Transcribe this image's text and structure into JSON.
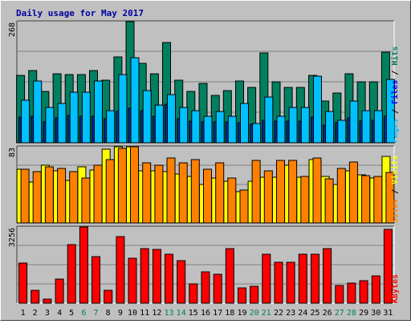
{
  "chart_data": [
    {
      "type": "bar",
      "panel": "top",
      "title": "Daily usage for May 2017",
      "ymax_label": "268",
      "ylim": [
        0,
        268
      ],
      "categories": [
        "1",
        "2",
        "3",
        "4",
        "5",
        "6",
        "7",
        "8",
        "9",
        "10",
        "11",
        "12",
        "13",
        "14",
        "15",
        "16",
        "17",
        "18",
        "19",
        "20",
        "21",
        "22",
        "23",
        "24",
        "25",
        "26",
        "27",
        "28",
        "29",
        "30",
        "31"
      ],
      "weekend_days": [
        "6",
        "7",
        "13",
        "14",
        "20",
        "21",
        "27",
        "28"
      ],
      "legend": [
        {
          "text": "Hits",
          "color": "#00805c"
        },
        {
          "text": "Files",
          "color": "#0000ff"
        },
        {
          "text": "Pages",
          "color": "#00c0ff"
        }
      ],
      "legend_separator": "/",
      "series": [
        {
          "name": "Hits",
          "color": "#008060",
          "values": [
            149,
            161,
            114,
            154,
            151,
            151,
            161,
            139,
            191,
            268,
            177,
            154,
            223,
            139,
            114,
            132,
            105,
            116,
            137,
            124,
            199,
            135,
            124,
            124,
            149,
            94,
            111,
            154,
            135,
            135,
            201
          ]
        },
        {
          "name": "Files",
          "color": "#00309c",
          "values": [
            58,
            60,
            48,
            56,
            62,
            60,
            60,
            54,
            70,
            78,
            72,
            60,
            87,
            54,
            50,
            48,
            48,
            48,
            46,
            42,
            52,
            50,
            50,
            50,
            58,
            40,
            46,
            56,
            50,
            52,
            60
          ]
        },
        {
          "name": "Pages",
          "color": "#00c0ff",
          "values": [
            96,
            137,
            79,
            88,
            112,
            112,
            137,
            72,
            151,
            188,
            116,
            84,
            108,
            79,
            73,
            60,
            70,
            60,
            88,
            44,
            102,
            60,
            79,
            79,
            148,
            71,
            52,
            93,
            73,
            73,
            141
          ]
        }
      ]
    },
    {
      "type": "bar",
      "panel": "middle",
      "ymax_label": "83",
      "ylim": [
        0,
        83
      ],
      "categories": [
        "1",
        "2",
        "3",
        "4",
        "5",
        "6",
        "7",
        "8",
        "9",
        "10",
        "11",
        "12",
        "13",
        "14",
        "15",
        "16",
        "17",
        "18",
        "19",
        "20",
        "21",
        "22",
        "23",
        "24",
        "25",
        "26",
        "27",
        "28",
        "29",
        "30",
        "31"
      ],
      "legend": [
        {
          "text": "Visits",
          "color": "#ffff00"
        },
        {
          "text": "Sites",
          "color": "#ff8000"
        }
      ],
      "legend_separator": "/",
      "series": [
        {
          "name": "Visits",
          "color": "#ffff00",
          "values": [
            59,
            45,
            63,
            57,
            47,
            61,
            58,
            80,
            83,
            83,
            57,
            57,
            56,
            54,
            51,
            42,
            49,
            46,
            35,
            46,
            50,
            50,
            63,
            50,
            69,
            51,
            42,
            57,
            53,
            49,
            73
          ]
        },
        {
          "name": "Sites",
          "color": "#ff8000",
          "values": [
            59,
            56,
            61,
            60,
            56,
            49,
            63,
            69,
            81,
            83,
            66,
            63,
            71,
            66,
            69,
            59,
            66,
            49,
            36,
            68,
            57,
            68,
            68,
            51,
            71,
            48,
            60,
            67,
            52,
            51,
            55
          ]
        }
      ]
    },
    {
      "type": "bar",
      "panel": "bottom",
      "ymax_label": "3256",
      "ylim": [
        0,
        3256
      ],
      "categories": [
        "1",
        "2",
        "3",
        "4",
        "5",
        "6",
        "7",
        "8",
        "9",
        "10",
        "11",
        "12",
        "13",
        "14",
        "15",
        "16",
        "17",
        "18",
        "19",
        "20",
        "21",
        "22",
        "23",
        "24",
        "25",
        "26",
        "27",
        "28",
        "29",
        "30",
        "31"
      ],
      "legend": [
        {
          "text": "KBytes",
          "color": "#ff0000"
        }
      ],
      "series": [
        {
          "name": "KBytes",
          "color": "#ff0000",
          "values": [
            1720,
            580,
            220,
            1050,
            2500,
            3256,
            2000,
            580,
            2850,
            1950,
            2330,
            2300,
            2100,
            1840,
            850,
            1360,
            1250,
            2330,
            680,
            760,
            2100,
            1780,
            1780,
            2100,
            2100,
            2330,
            780,
            880,
            1000,
            1200,
            3150
          ]
        }
      ]
    }
  ]
}
